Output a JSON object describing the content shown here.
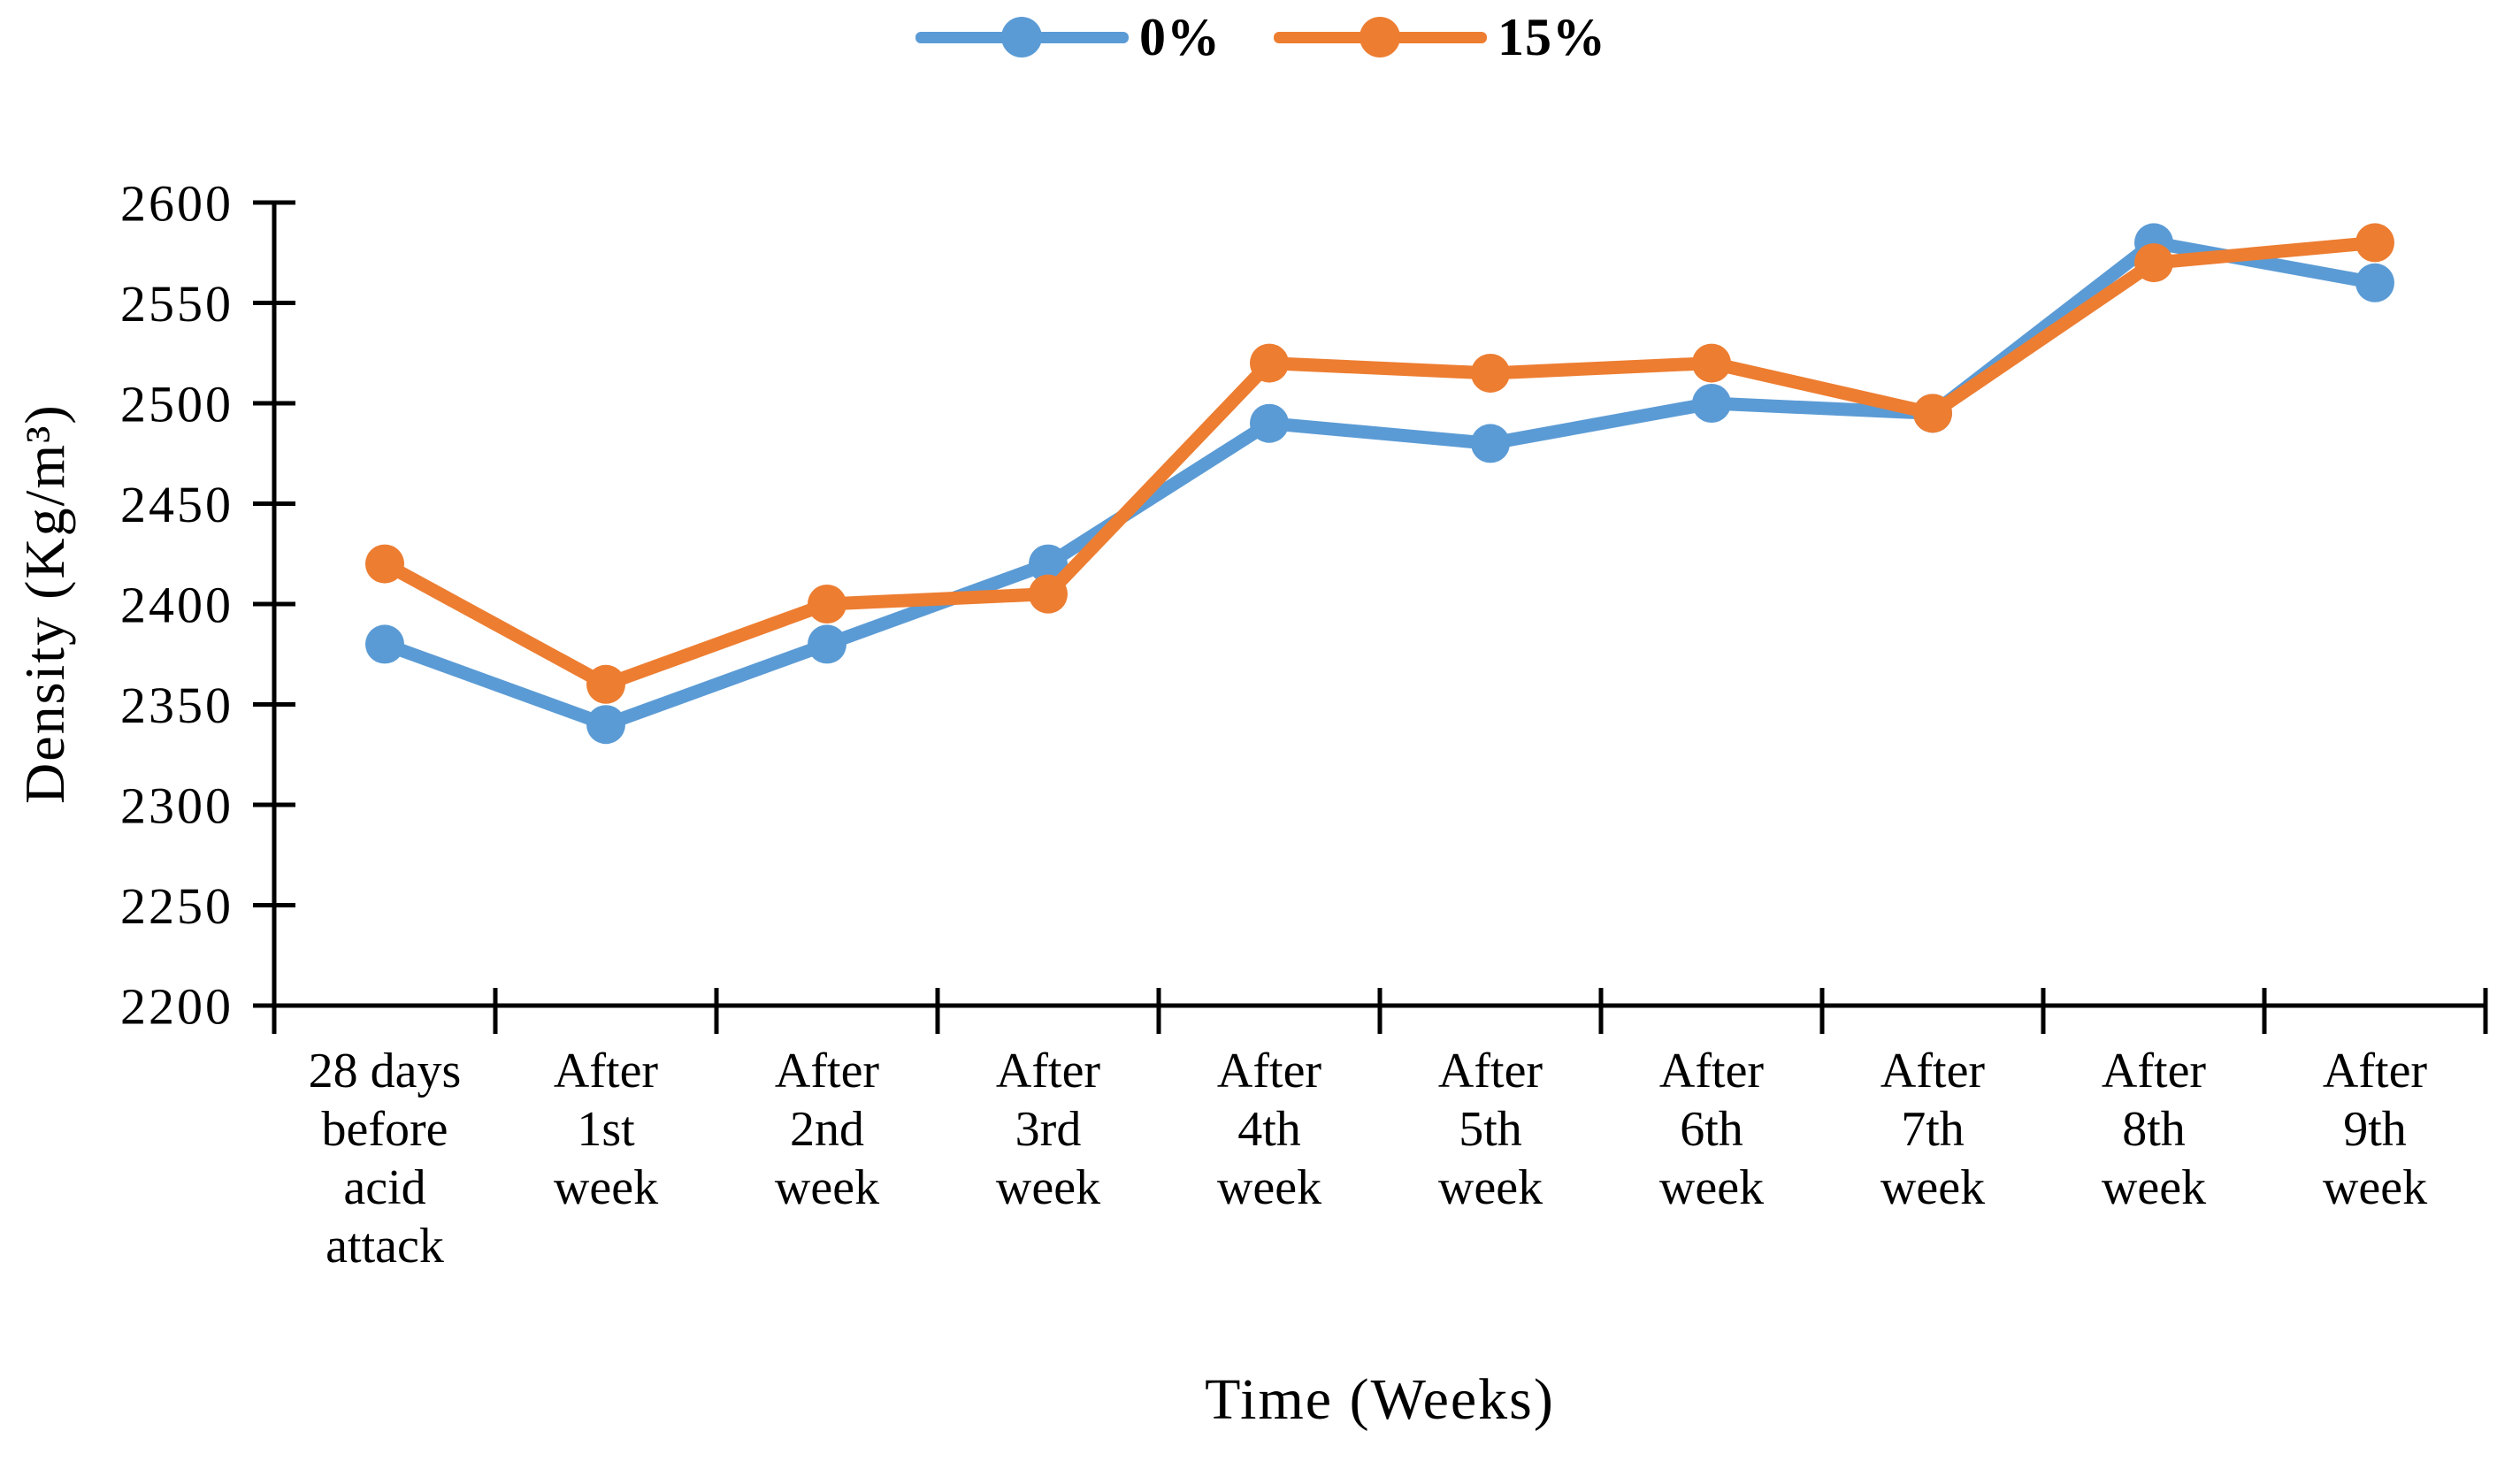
{
  "chart_data": {
    "type": "line",
    "title": "",
    "xlabel": "Time (Weeks)",
    "ylabel": "Density (Kg/m³)",
    "ylim": [
      2200,
      2600
    ],
    "yticks": [
      2200,
      2250,
      2300,
      2350,
      2400,
      2450,
      2500,
      2550,
      2600
    ],
    "grid": false,
    "legend_position": "top-center",
    "marker": "circle",
    "axis_color": "#000000",
    "categories": [
      "28 days before acid attack",
      "After 1st week",
      "After 2nd week",
      "After 3rd week",
      "After 4th week",
      "After 5th week",
      "After 6th week",
      "After 7th week",
      "After 8th week",
      "After 9th week"
    ],
    "category_label_lines": [
      [
        "28 days",
        "before",
        "acid",
        "attack"
      ],
      [
        "After",
        "1st",
        "week"
      ],
      [
        "After",
        "2nd",
        "week"
      ],
      [
        "After",
        "3rd",
        "week"
      ],
      [
        "After",
        "4th",
        "week"
      ],
      [
        "After",
        "5th",
        "week"
      ],
      [
        "After",
        "6th",
        "week"
      ],
      [
        "After",
        "7th",
        "week"
      ],
      [
        "After",
        "8th",
        "week"
      ],
      [
        "After",
        "9th",
        "week"
      ]
    ],
    "series": [
      {
        "name": "0%",
        "color": "#5B9BD5",
        "values": [
          2380,
          2340,
          2380,
          2420,
          2490,
          2480,
          2500,
          2495,
          2580,
          2560
        ]
      },
      {
        "name": "15%",
        "color": "#ED7D31",
        "values": [
          2420,
          2360,
          2400,
          2405,
          2520,
          2515,
          2520,
          2495,
          2570,
          2580
        ]
      }
    ]
  }
}
